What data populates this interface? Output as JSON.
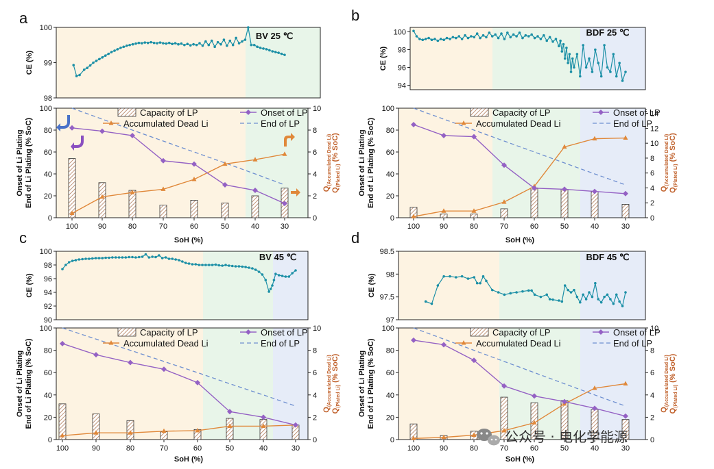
{
  "chart_data": [
    {
      "panel": "a",
      "title": "BV 25 ℃",
      "type": "line",
      "ce": {
        "ylabel": "CE (%)",
        "ylim": [
          98,
          100
        ],
        "yticks": [
          98,
          99,
          100
        ],
        "x": [
          99.5,
          98.5,
          97.5,
          96,
          95,
          94,
          93,
          92,
          91,
          90,
          89,
          88,
          87,
          86,
          85,
          84,
          83,
          82,
          81,
          80,
          79,
          78,
          77,
          76,
          75,
          74,
          73,
          72,
          71,
          70,
          69,
          68,
          67,
          66,
          65,
          64,
          63,
          62,
          61,
          60,
          59,
          58,
          57,
          56,
          55,
          54,
          53,
          52,
          51,
          50,
          49,
          48,
          47,
          46,
          45,
          44,
          43,
          42,
          41,
          40,
          39,
          38,
          37,
          36,
          35,
          34,
          33,
          32,
          31,
          30
        ],
        "y": [
          98.93,
          98.62,
          98.65,
          98.8,
          98.85,
          98.92,
          99.0,
          99.05,
          99.1,
          99.15,
          99.2,
          99.25,
          99.3,
          99.34,
          99.38,
          99.42,
          99.45,
          99.48,
          99.5,
          99.52,
          99.54,
          99.56,
          99.55,
          99.57,
          99.56,
          99.58,
          99.56,
          99.55,
          99.57,
          99.55,
          99.54,
          99.56,
          99.53,
          99.55,
          99.52,
          99.54,
          99.5,
          99.53,
          99.49,
          99.52,
          99.5,
          99.55,
          99.48,
          99.6,
          99.5,
          99.62,
          99.45,
          99.58,
          99.52,
          99.65,
          99.48,
          99.62,
          99.5,
          99.7,
          99.55,
          99.6,
          99.65,
          100.0,
          99.5,
          99.5,
          99.45,
          99.42,
          99.4,
          99.38,
          99.35,
          99.32,
          99.3,
          99.28,
          99.25,
          99.22
        ]
      },
      "lp": {
        "xlabel": "SoH (%)",
        "x": [
          100,
          90,
          80,
          70,
          60,
          50,
          40,
          30
        ],
        "ylabel_left": [
          "Onset of Li Plating",
          "End of Li Plating (% SoC)"
        ],
        "ylim_left": [
          0,
          100
        ],
        "yticks_left": [
          0,
          20,
          40,
          60,
          80,
          100
        ],
        "ylabel_right": [
          "Q",
          "(Accumulated Dead Li)",
          "Q",
          "(Plated Li)",
          "(% SoC)"
        ],
        "ylim_right": [
          0,
          10
        ],
        "yticks_right": [
          0,
          2,
          4,
          6,
          8,
          10
        ],
        "series": [
          {
            "name": "Capacity of LP",
            "kind": "bar",
            "axis": "right",
            "values": [
              5.4,
              3.2,
              2.5,
              1.15,
              1.6,
              1.35,
              2.0,
              2.7
            ]
          },
          {
            "name": "Accumulated Dead Li",
            "kind": "line",
            "axis": "right",
            "values": [
              0.4,
              1.9,
              2.3,
              2.6,
              3.5,
              4.9,
              5.3,
              5.8
            ]
          },
          {
            "name": "Onset of LP",
            "kind": "line",
            "axis": "left",
            "values": [
              82,
              79,
              75,
              52,
              49,
              30,
              25,
              13
            ]
          },
          {
            "name": "End of LP",
            "kind": "dashed",
            "axis": "left",
            "values": [
              100,
              90,
              80,
              70,
              60,
              50,
              40,
              30
            ]
          }
        ]
      }
    },
    {
      "panel": "b",
      "title": "BDF 25 ℃",
      "type": "line",
      "ce": {
        "ylabel": "CE (%)",
        "ylim": [
          93.5,
          100.5
        ],
        "yticks": [
          94,
          96,
          98,
          100
        ],
        "x": [
          100,
          99,
          98,
          97,
          96,
          95,
          94,
          93,
          92,
          91,
          90,
          89,
          88,
          87,
          86,
          85,
          84,
          83,
          82,
          81,
          80,
          79,
          78,
          77,
          76,
          75,
          74,
          73,
          72,
          71,
          70,
          69,
          68,
          67,
          66,
          65,
          64,
          63,
          62,
          61,
          60,
          59,
          58,
          57,
          56,
          55,
          54,
          53,
          52,
          51.5,
          51,
          50.5,
          50,
          49.5,
          49,
          48.5,
          48,
          47.5,
          47,
          46,
          45,
          44,
          43,
          42,
          41,
          40,
          39,
          38,
          37,
          36,
          35,
          34,
          33,
          32,
          31,
          30
        ],
        "y": [
          100.1,
          99.5,
          99.2,
          99.1,
          99.2,
          99.3,
          99.1,
          99.2,
          99.0,
          99.2,
          99.1,
          99.3,
          99.2,
          99.4,
          99.3,
          99.5,
          99.2,
          99.6,
          99.3,
          99.5,
          99.4,
          99.8,
          99.3,
          99.6,
          99.4,
          99.9,
          99.5,
          99.7,
          99.3,
          99.8,
          99.2,
          99.9,
          99.4,
          99.7,
          99.5,
          99.9,
          99.3,
          99.6,
          99.5,
          99.7,
          99.3,
          99.5,
          99.2,
          99.6,
          99.0,
          99.4,
          98.9,
          99.2,
          98.4,
          99.0,
          97.8,
          98.6,
          97.0,
          98.2,
          96.5,
          97.5,
          95.5,
          97.0,
          96.0,
          97.5,
          95.0,
          98.5,
          96.0,
          97.0,
          95.5,
          98.0,
          96.5,
          95.0,
          98.5,
          96.0,
          95.5,
          97.5,
          95.0,
          96.5,
          94.5,
          95.5
        ]
      },
      "lp": {
        "xlabel": "SoH (%)",
        "x": [
          100,
          90,
          80,
          70,
          60,
          50,
          40,
          30
        ],
        "ylabel_left": [
          "Onset of Li Plating",
          "End of Li Plating (% SoC)"
        ],
        "ylim_left": [
          0,
          100
        ],
        "yticks_left": [
          0,
          20,
          40,
          60,
          80,
          100
        ],
        "ylabel_right": [
          "Q",
          "(Accumulated Dead Li)",
          "Q",
          "(Plated Li)",
          "(% SoC)"
        ],
        "ylim_right": [
          0,
          14.7
        ],
        "yticks_right": [
          0,
          2,
          4,
          6,
          8,
          10,
          12,
          14
        ],
        "series": [
          {
            "name": "Capacity of LP",
            "kind": "bar",
            "axis": "right",
            "values": [
              1.4,
              0.5,
              0.5,
              1.2,
              4.0,
              3.8,
              3.5,
              1.8
            ]
          },
          {
            "name": "Accumulated Dead Li",
            "kind": "line",
            "axis": "right",
            "values": [
              0.15,
              0.9,
              0.9,
              2.1,
              4.2,
              9.5,
              10.6,
              10.7
            ]
          },
          {
            "name": "Onset of LP",
            "kind": "line",
            "axis": "left",
            "values": [
              85,
              75,
              74,
              48,
              27,
              26,
              24,
              22
            ]
          },
          {
            "name": "End of LP",
            "kind": "dashed",
            "axis": "left",
            "values": [
              100,
              90,
              80,
              70,
              60,
              50,
              40,
              30
            ]
          }
        ]
      }
    },
    {
      "panel": "c",
      "title": "BV 45 ℃",
      "type": "line",
      "ce": {
        "ylabel": "CE (%)",
        "ylim": [
          90,
          100
        ],
        "yticks": [
          90,
          92,
          94,
          96,
          98,
          100
        ],
        "x": [
          100,
          99,
          98,
          97,
          96,
          95,
          94,
          93,
          92,
          91,
          90,
          89,
          88,
          87,
          86,
          85,
          84,
          83,
          82,
          81,
          80,
          79,
          78,
          77,
          76,
          75,
          74,
          73,
          72,
          71,
          70,
          69,
          68,
          67,
          66,
          65,
          64,
          63,
          62,
          61,
          60,
          59,
          58,
          57,
          56,
          55,
          54,
          53,
          52,
          51,
          50,
          49,
          48,
          47,
          46,
          45,
          44,
          43,
          42,
          41,
          40,
          39,
          38,
          37.5,
          37,
          36.5,
          36,
          35,
          34,
          33,
          32,
          31,
          30
        ],
        "y": [
          97.4,
          98.0,
          98.4,
          98.6,
          98.7,
          98.8,
          98.85,
          98.9,
          98.9,
          98.95,
          99.0,
          99.0,
          99.0,
          99.05,
          99.05,
          99.1,
          99.1,
          99.1,
          99.1,
          99.1,
          99.15,
          99.15,
          99.1,
          99.15,
          99.2,
          99.55,
          99.1,
          99.2,
          99.15,
          99.4,
          99.0,
          99.1,
          98.9,
          98.9,
          98.8,
          98.7,
          98.5,
          98.3,
          98.2,
          98.1,
          98.1,
          98.0,
          98.0,
          98.0,
          98.0,
          98.0,
          98.05,
          97.95,
          97.9,
          98.0,
          97.9,
          97.85,
          97.8,
          97.8,
          97.75,
          97.7,
          97.6,
          97.5,
          97.3,
          97.0,
          96.6,
          95.8,
          94.1,
          94.5,
          95.0,
          95.8,
          96.7,
          96.5,
          96.4,
          96.3,
          96.3,
          96.8,
          97.2
        ]
      },
      "lp": {
        "xlabel": "SoH (%)",
        "x": [
          100,
          90,
          80,
          70,
          60,
          50,
          40,
          30
        ],
        "ylabel_left": [
          "Onset of Li Plating",
          "End of Li Plating (% SoC)"
        ],
        "ylim_left": [
          0,
          100
        ],
        "yticks_left": [
          0,
          20,
          40,
          60,
          80,
          100
        ],
        "ylabel_right": [
          "Q",
          "(Accumulated Dead Li)",
          "Q",
          "(Plated Li)",
          "(% SoC)"
        ],
        "ylim_right": [
          0,
          10
        ],
        "yticks_right": [
          0,
          2,
          4,
          6,
          8,
          10
        ],
        "series": [
          {
            "name": "Capacity of LP",
            "kind": "bar",
            "axis": "right",
            "values": [
              3.2,
              2.3,
              1.7,
              0.7,
              0.9,
              1.9,
              1.8,
              1.3
            ]
          },
          {
            "name": "Accumulated Dead Li",
            "kind": "line",
            "axis": "right",
            "values": [
              0.35,
              0.6,
              0.6,
              0.75,
              0.8,
              1.2,
              1.2,
              1.3
            ]
          },
          {
            "name": "Onset of LP",
            "kind": "line",
            "axis": "left",
            "values": [
              86,
              76,
              69,
              63,
              51,
              25,
              20,
              13
            ]
          },
          {
            "name": "End of LP",
            "kind": "dashed",
            "axis": "left",
            "values": [
              100,
              90,
              80,
              70,
              60,
              50,
              40,
              30
            ]
          }
        ]
      }
    },
    {
      "panel": "d",
      "title": "BDF 45 ℃",
      "type": "line",
      "ce": {
        "ylabel": "CE (%)",
        "ylim": [
          97.0,
          98.5
        ],
        "yticks": [
          97.0,
          97.5,
          98.0,
          98.5
        ],
        "x": [
          96,
          94,
          92,
          90,
          88,
          86,
          84,
          82,
          80,
          79,
          78,
          77,
          76,
          74,
          72,
          70,
          68,
          66,
          64,
          62,
          61,
          60,
          58,
          56,
          55,
          54,
          52,
          51,
          50,
          49,
          48,
          47,
          46,
          45,
          44,
          43,
          42,
          41,
          40,
          39,
          38,
          37,
          36,
          35,
          34,
          33,
          32,
          31,
          30
        ],
        "y": [
          97.4,
          97.35,
          97.75,
          97.95,
          97.95,
          97.93,
          97.95,
          97.9,
          97.93,
          97.8,
          97.8,
          97.95,
          97.85,
          97.65,
          97.6,
          97.55,
          97.58,
          97.6,
          97.62,
          97.64,
          97.64,
          97.55,
          97.5,
          97.55,
          97.45,
          97.44,
          97.42,
          97.4,
          97.75,
          97.65,
          97.6,
          97.65,
          97.5,
          97.38,
          97.55,
          97.45,
          97.6,
          97.5,
          97.8,
          97.45,
          97.38,
          97.5,
          97.55,
          97.45,
          97.35,
          97.55,
          97.4,
          97.3,
          97.6
        ]
      },
      "lp": {
        "xlabel": "SoH (%)",
        "x": [
          100,
          90,
          80,
          70,
          60,
          50,
          40,
          30
        ],
        "ylabel_left": [
          "Onset of Li Plating",
          "End of Li Plating (% SoC)"
        ],
        "ylim_left": [
          0,
          100
        ],
        "yticks_left": [
          0,
          20,
          40,
          60,
          80,
          100
        ],
        "ylabel_right": [
          "Q",
          "(Accumulated Dead Li)",
          "Q",
          "(Plated Li)",
          "(% SoC)"
        ],
        "ylim_right": [
          0,
          10
        ],
        "yticks_right": [
          0,
          2,
          4,
          6,
          8,
          10
        ],
        "series": [
          {
            "name": "Capacity of LP",
            "kind": "bar",
            "axis": "right",
            "values": [
              1.4,
              0.35,
              0.75,
              3.8,
              3.3,
              3.5,
              2.7,
              1.8
            ]
          },
          {
            "name": "Accumulated Dead Li",
            "kind": "line",
            "axis": "right",
            "values": [
              0.1,
              0.2,
              0.4,
              0.8,
              1.5,
              3.2,
              4.6,
              5.0
            ]
          },
          {
            "name": "Onset of LP",
            "kind": "line",
            "axis": "left",
            "values": [
              89,
              85,
              71,
              48,
              39,
              34,
              28,
              21
            ]
          },
          {
            "name": "End of LP",
            "kind": "dashed",
            "axis": "left",
            "values": [
              100,
              90,
              80,
              70,
              60,
              50,
              40,
              30
            ]
          }
        ]
      }
    }
  ],
  "colors": {
    "ce_line": "#1b8fa6",
    "onset": "#9461c4",
    "dead_li": "#e0883a",
    "end_lp": "#6e8fd0",
    "bar_hatch": "#b07a58",
    "right_axis": "#c0602a",
    "bg_yellow": "#fdf3e2",
    "bg_green": "#e8f5e9",
    "bg_blue": "#e6ecf8",
    "arrow_blue": "#4a72c8",
    "arrow_purple": "#8a4fc0",
    "arrow_orange": "#e0883a"
  },
  "watermark": {
    "text": "公众号 · 电化学能源",
    "icon": "wechat-icon"
  }
}
